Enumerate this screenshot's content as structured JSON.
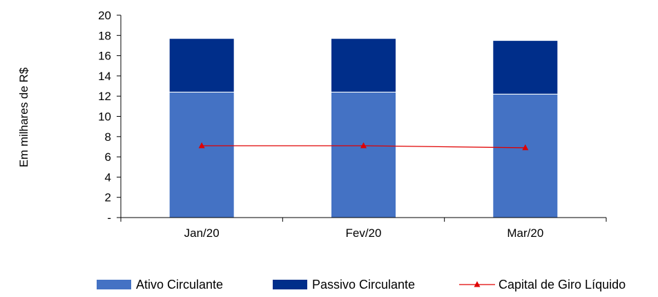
{
  "chart_data": {
    "type": "bar",
    "stacked": true,
    "categories": [
      "Jan/20",
      "Fev/20",
      "Mar/20"
    ],
    "series": [
      {
        "name": "Ativo Circulante",
        "kind": "bar",
        "values": [
          12.4,
          12.4,
          12.2
        ],
        "color": "#4472C4"
      },
      {
        "name": "Passivo Circulante",
        "kind": "bar",
        "values": [
          5.3,
          5.3,
          5.3
        ],
        "color": "#002E8A"
      },
      {
        "name": "Capital de Giro Líquido",
        "kind": "line",
        "values": [
          7.1,
          7.1,
          6.9
        ],
        "color": "#E00000",
        "marker": "triangle"
      }
    ],
    "ylabel": "Em milhares de R$",
    "ylim": [
      0,
      20
    ],
    "yticks": [
      "-",
      "2",
      "4",
      "6",
      "8",
      "10",
      "12",
      "14",
      "16",
      "18",
      "20"
    ],
    "grid": false,
    "legend_position": "bottom"
  }
}
